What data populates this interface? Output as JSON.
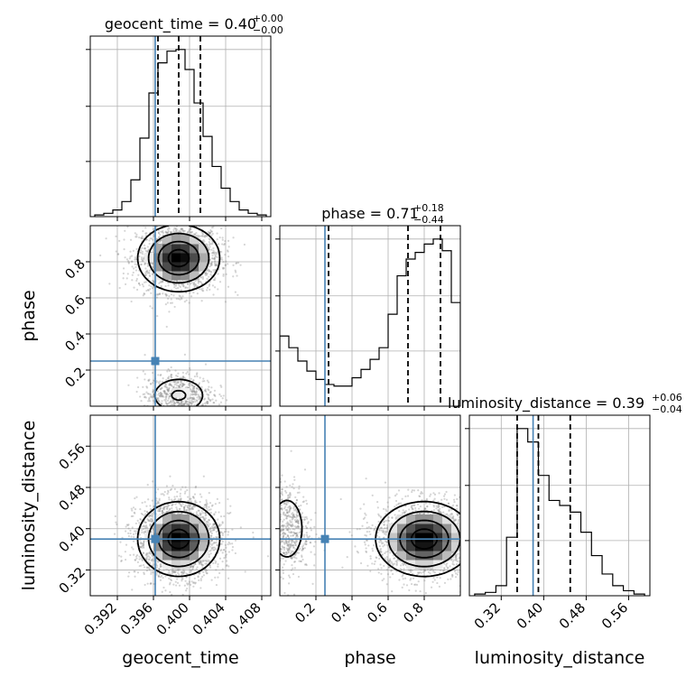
{
  "figure": {
    "type": "corner",
    "parameters": [
      "geocent_time",
      "phase",
      "luminosity_distance"
    ],
    "truth_color": "#4682b4"
  },
  "chart_data": [
    {
      "type": "histogram",
      "panel": "geocent_time",
      "title": {
        "name": "geocent_time",
        "median": "0.40",
        "upper": "+0.00",
        "lower": "−0.00"
      },
      "xlim": [
        0.389,
        0.409
      ],
      "bin_edges": [
        0.3895,
        0.3905,
        0.3915,
        0.3925,
        0.3935,
        0.3945,
        0.3955,
        0.3965,
        0.3975,
        0.3985,
        0.3995,
        0.4005,
        0.4015,
        0.4025,
        0.4035,
        0.4045,
        0.4055,
        0.4065,
        0.4075,
        0.4085
      ],
      "counts": [
        0.01,
        0.02,
        0.04,
        0.09,
        0.22,
        0.47,
        0.74,
        0.92,
        0.99,
        1.0,
        0.88,
        0.68,
        0.48,
        0.3,
        0.17,
        0.09,
        0.04,
        0.02,
        0.01
      ],
      "quantiles": [
        0.3965,
        0.3988,
        0.4012
      ],
      "truth": 0.3962
    },
    {
      "type": "histogram",
      "panel": "phase",
      "title": {
        "name": "phase",
        "median": "0.71",
        "upper": "+0.18",
        "lower": "−0.44"
      },
      "xlim": [
        0.0,
        1.0
      ],
      "bin_edges": [
        0.0,
        0.05,
        0.1,
        0.15,
        0.2,
        0.25,
        0.3,
        0.35,
        0.4,
        0.45,
        0.5,
        0.55,
        0.6,
        0.65,
        0.7,
        0.75,
        0.8,
        0.85,
        0.9,
        0.95,
        1.0
      ],
      "counts": [
        0.42,
        0.35,
        0.27,
        0.21,
        0.16,
        0.13,
        0.12,
        0.12,
        0.17,
        0.22,
        0.28,
        0.35,
        0.55,
        0.78,
        0.88,
        0.92,
        0.97,
        1.0,
        0.93,
        0.62
      ],
      "quantiles": [
        0.27,
        0.71,
        0.89
      ],
      "truth": 0.25
    },
    {
      "type": "histogram",
      "panel": "luminosity_distance",
      "title": {
        "name": "luminosity_distance",
        "median": "0.39",
        "upper": "+0.06",
        "lower": "−0.04"
      },
      "xlim": [
        0.26,
        0.6
      ],
      "bin_edges": [
        0.27,
        0.29,
        0.31,
        0.33,
        0.35,
        0.37,
        0.39,
        0.41,
        0.43,
        0.45,
        0.47,
        0.49,
        0.51,
        0.53,
        0.55,
        0.57,
        0.59
      ],
      "counts": [
        0.01,
        0.02,
        0.06,
        0.35,
        1.0,
        0.92,
        0.72,
        0.57,
        0.54,
        0.5,
        0.38,
        0.24,
        0.13,
        0.06,
        0.03,
        0.01
      ],
      "quantiles": [
        0.35,
        0.39,
        0.45
      ],
      "truth": 0.38
    },
    {
      "type": "2d-density",
      "panel": "geocent_time vs phase",
      "x": "geocent_time",
      "y": "phase",
      "xlim": [
        0.389,
        0.409
      ],
      "ylim": [
        0.0,
        1.0
      ],
      "peaks": [
        {
          "x": 0.3988,
          "y": 0.82,
          "sx": 0.0022,
          "sy": 0.09,
          "w": 1.0
        },
        {
          "x": 0.3988,
          "y": 0.06,
          "sx": 0.0018,
          "sy": 0.06,
          "w": 0.35
        }
      ],
      "truth": [
        0.3962,
        0.25
      ]
    },
    {
      "type": "2d-density",
      "panel": "geocent_time vs luminosity_distance",
      "x": "geocent_time",
      "y": "luminosity_distance",
      "xlim": [
        0.389,
        0.409
      ],
      "ylim": [
        0.27,
        0.62
      ],
      "peaks": [
        {
          "x": 0.3988,
          "y": 0.38,
          "sx": 0.0022,
          "sy": 0.035,
          "w": 1.0
        }
      ],
      "truth": [
        0.3962,
        0.38
      ]
    },
    {
      "type": "2d-density",
      "panel": "phase vs luminosity_distance",
      "x": "phase",
      "y": "luminosity_distance",
      "xlim": [
        0.0,
        1.0
      ],
      "ylim": [
        0.27,
        0.62
      ],
      "peaks": [
        {
          "x": 0.8,
          "y": 0.38,
          "sx": 0.13,
          "sy": 0.035,
          "w": 1.0
        },
        {
          "x": 0.04,
          "y": 0.4,
          "sx": 0.06,
          "sy": 0.04,
          "w": 0.3
        }
      ],
      "truth": [
        0.25,
        0.38
      ]
    }
  ],
  "axes": {
    "x_ticks": {
      "geocent_time": [
        "0.392",
        "0.396",
        "0.400",
        "0.404",
        "0.408"
      ],
      "phase": [
        "0.2",
        "0.4",
        "0.6",
        "0.8"
      ],
      "luminosity_distance": [
        "0.32",
        "0.40",
        "0.48",
        "0.56"
      ]
    },
    "y_ticks": {
      "phase": [
        "0.2",
        "0.4",
        "0.6",
        "0.8"
      ],
      "luminosity_distance": [
        "0.32",
        "0.40",
        "0.48",
        "0.56"
      ]
    },
    "x_labels": {
      "geocent_time": "geocent_time",
      "phase": "phase",
      "luminosity_distance": "luminosity_distance"
    },
    "y_labels": {
      "phase": "phase",
      "luminosity_distance": "luminosity_distance"
    }
  }
}
